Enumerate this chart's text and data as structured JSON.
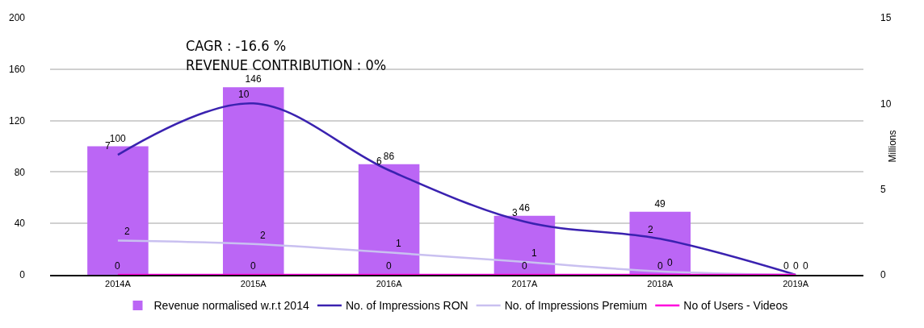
{
  "chart_data": {
    "type": "bar",
    "categories": [
      "2014A",
      "2015A",
      "2016A",
      "2017A",
      "2018A",
      "2019A"
    ],
    "series": [
      {
        "name": "Revenue normalised w.r.t 2014",
        "color": "#bb66f5",
        "values": [
          100,
          146,
          86,
          46,
          49,
          null
        ],
        "value_labels": [
          "100",
          "146",
          "86",
          "46",
          "49",
          null
        ]
      },
      {
        "name": "No. of Impressions RON",
        "type": "line",
        "axis": "y2",
        "color": "#3a22b0",
        "values": [
          7,
          10,
          6.1,
          3.1,
          2.1,
          0
        ],
        "value_labels": [
          "7",
          "10",
          "6",
          "3",
          "2",
          "0"
        ]
      },
      {
        "name": "No. of Impressions Premium",
        "type": "line",
        "axis": "y2",
        "color": "#c9c0f0",
        "values": [
          2,
          1.8,
          1.3,
          0.75,
          0.2,
          0
        ],
        "value_labels": [
          "2",
          "2",
          "1",
          "1",
          "0",
          "0"
        ]
      },
      {
        "name": "No of Users - Videos",
        "type": "line",
        "axis": "y2",
        "color": "#ff00dd",
        "values": [
          0,
          0,
          0,
          0,
          0,
          0
        ],
        "value_labels": [
          "0",
          "0",
          "0",
          "0",
          "0",
          "0"
        ]
      }
    ],
    "ylim": [
      0,
      200
    ],
    "yticks": [
      0,
      40,
      80,
      120,
      160,
      200
    ],
    "y2lim": [
      0,
      15
    ],
    "y2ticks": [
      0,
      5,
      10,
      15
    ],
    "y2label": "Millions",
    "annotations": [
      "CAGR : -16.6 %",
      "REVENUE CONTRIBUTION : 0%"
    ],
    "grid": "y",
    "legend": "bottom",
    "marker": "none",
    "line_style": "solid"
  }
}
